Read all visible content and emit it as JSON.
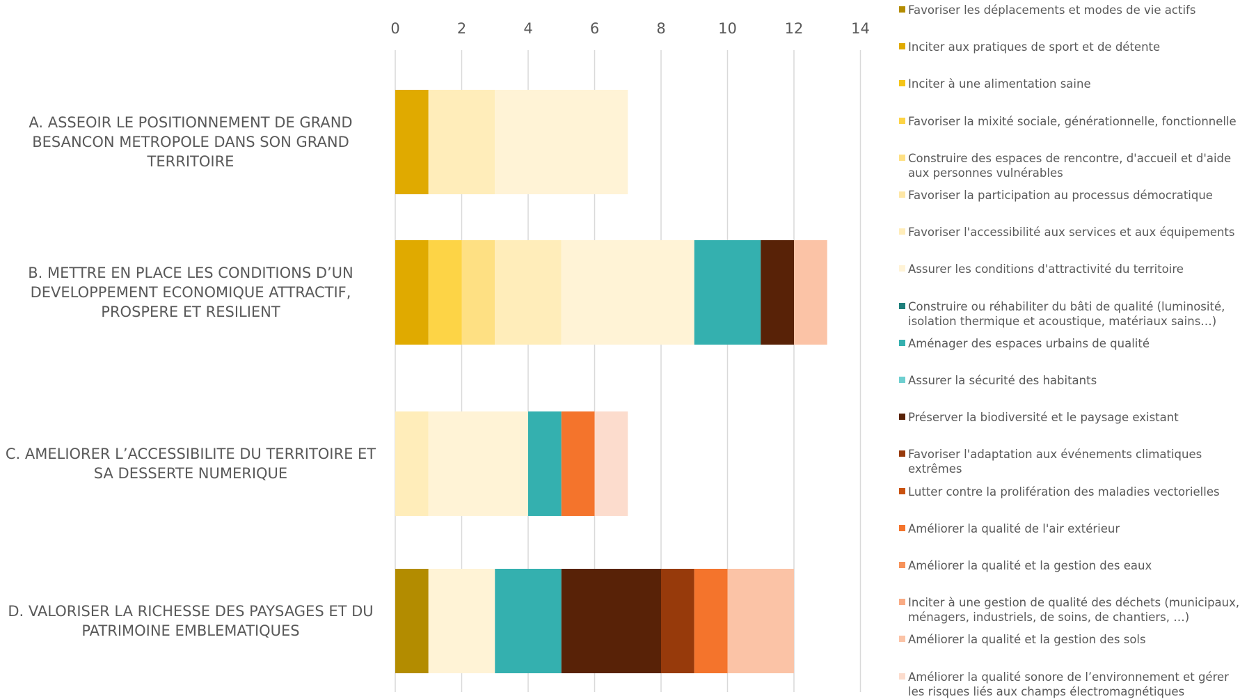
{
  "chart_data": {
    "type": "bar",
    "orientation": "horizontal",
    "stacked": true,
    "title": "",
    "xlabel": "",
    "ylabel": "",
    "xlim": [
      0,
      14
    ],
    "x_ticks": [
      0,
      2,
      4,
      6,
      8,
      10,
      12,
      14
    ],
    "grid": true,
    "legend_position": "right",
    "categories": [
      "A. ASSEOIR LE POSITIONNEMENT DE GRAND BESANCON METROPOLE DANS SON GRAND TERRITOIRE",
      "B. METTRE EN PLACE LES CONDITIONS D’UN DEVELOPPEMENT ECONOMIQUE ATTRACTIF, PROSPERE ET RESILIENT",
      "C. AMELIORER L’ACCESSIBILITE DU TERRITOIRE ET SA DESSERTE NUMERIQUE",
      "D. VALORISER LA RICHESSE DES PAYSAGES ET DU PATRIMOINE EMBLEMATIQUES"
    ],
    "category_lines": [
      [
        "A. ASSEOIR LE POSITIONNEMENT DE GRAND",
        "BESANCON METROPOLE DANS SON GRAND",
        "TERRITOIRE"
      ],
      [
        "B. METTRE EN PLACE LES CONDITIONS D’UN",
        "DEVELOPPEMENT ECONOMIQUE ATTRACTIF,",
        "PROSPERE ET RESILIENT"
      ],
      [
        "C. AMELIORER L’ACCESSIBILITE DU TERRITOIRE ET",
        "SA DESSERTE NUMERIQUE"
      ],
      [
        "D. VALORISER LA RICHESSE DES PAYSAGES ET DU",
        "PATRIMOINE EMBLEMATIQUES"
      ]
    ],
    "series": [
      {
        "name": "Favoriser les déplacements et modes de vie actifs",
        "lines": [
          "Favoriser les déplacements et modes de vie actifs"
        ],
        "color": "#B38C00",
        "values": [
          0,
          0,
          0,
          1
        ]
      },
      {
        "name": "Inciter aux pratiques de sport et de détente",
        "lines": [
          "Inciter aux pratiques de sport et de détente"
        ],
        "color": "#E0AA00",
        "values": [
          1,
          1,
          0,
          0
        ]
      },
      {
        "name": "Inciter à une alimentation saine",
        "lines": [
          "Inciter à une alimentation saine"
        ],
        "color": "#F5C518",
        "values": [
          0,
          0,
          0,
          0
        ]
      },
      {
        "name": "Favoriser la mixité sociale, générationnelle, fonctionnelle",
        "lines": [
          "Favoriser la mixité sociale, générationnelle, fonctionnelle"
        ],
        "color": "#FDD446",
        "values": [
          0,
          1,
          0,
          0
        ]
      },
      {
        "name": "Construire des espaces de rencontre, d'accueil et d'aide aux personnes vulnérables",
        "lines": [
          "Construire des espaces de rencontre, d'accueil et d'aide",
          "aux personnes vulnérables"
        ],
        "color": "#FEE083",
        "values": [
          0,
          1,
          0,
          0
        ]
      },
      {
        "name": "Favoriser la participation au processus démocratique",
        "lines": [
          "Favoriser la participation au processus démocratique"
        ],
        "color": "#FEE7A6",
        "values": [
          0,
          0,
          0,
          0
        ]
      },
      {
        "name": "Favoriser l'accessibilité aux services et aux équipements",
        "lines": [
          "Favoriser l'accessibilité aux services et aux équipements"
        ],
        "color": "#FFEDBA",
        "values": [
          2,
          2,
          1,
          0
        ]
      },
      {
        "name": "Assurer les conditions d'attractivité du territoire",
        "lines": [
          "Assurer les conditions d'attractivité du territoire"
        ],
        "color": "#FFF3D6",
        "values": [
          4,
          4,
          3,
          2
        ]
      },
      {
        "name": "Construire ou réhabiliter du bâti de qualité (luminosité, isolation thermique et acoustique, matériaux sains…)",
        "lines": [
          "Construire ou réhabiliter du bâti de qualité (luminosité,",
          "isolation thermique et acoustique, matériaux sains…)"
        ],
        "color": "#1E7F7B",
        "values": [
          0,
          0,
          0,
          0
        ]
      },
      {
        "name": "Aménager des espaces urbains de qualité",
        "lines": [
          "Aménager des espaces urbains de qualité"
        ],
        "color": "#34B0AF",
        "values": [
          0,
          2,
          1,
          2
        ]
      },
      {
        "name": "Assurer la sécurité des habitants",
        "lines": [
          "Assurer la sécurité des habitants"
        ],
        "color": "#6ECFD0",
        "values": [
          0,
          0,
          0,
          0
        ]
      },
      {
        "name": "Préserver la biodiversité et le paysage existant",
        "lines": [
          "Préserver la biodiversité et le paysage existant"
        ],
        "color": "#582207",
        "values": [
          0,
          1,
          0,
          3
        ]
      },
      {
        "name": "Favoriser l'adaptation aux événements climatiques extrêmes",
        "lines": [
          "Favoriser l'adaptation aux événements climatiques",
          "extrêmes"
        ],
        "color": "#973A0B",
        "values": [
          0,
          0,
          0,
          1
        ]
      },
      {
        "name": "Lutter contre la prolifération des maladies vectorielles",
        "lines": [
          "Lutter contre la prolifération des maladies vectorielles"
        ],
        "color": "#C9520F",
        "values": [
          0,
          0,
          0,
          0
        ]
      },
      {
        "name": "Améliorer la qualité de l'air extérieur",
        "lines": [
          "Améliorer la qualité de l'air extérieur"
        ],
        "color": "#F4742C",
        "values": [
          0,
          0,
          1,
          1
        ]
      },
      {
        "name": "Améliorer la qualité et la gestion des eaux",
        "lines": [
          "Améliorer la qualité et la gestion des eaux"
        ],
        "color": "#F7925A",
        "values": [
          0,
          0,
          0,
          0
        ]
      },
      {
        "name": "Inciter à une gestion de qualité des déchets (municipaux, ménagers, industriels, de soins, de chantiers, …)",
        "lines": [
          "Inciter à une gestion de qualité des déchets (municipaux,",
          "ménagers, industriels, de soins, de chantiers, …)"
        ],
        "color": "#F9AB84",
        "values": [
          0,
          0,
          0,
          0
        ]
      },
      {
        "name": "Améliorer la qualité et la gestion des sols",
        "lines": [
          "Améliorer la qualité et la gestion des sols"
        ],
        "color": "#FBC3A6",
        "values": [
          0,
          1,
          0,
          2
        ]
      },
      {
        "name": "Améliorer la qualité sonore de l’environnement et gérer les risques liés aux champs électromagnétiques",
        "lines": [
          "Améliorer la qualité sonore de l’environnement et gérer",
          "les risques liés aux champs électromagnétiques"
        ],
        "color": "#FCDCCD",
        "values": [
          0,
          0,
          1,
          0
        ]
      }
    ]
  }
}
